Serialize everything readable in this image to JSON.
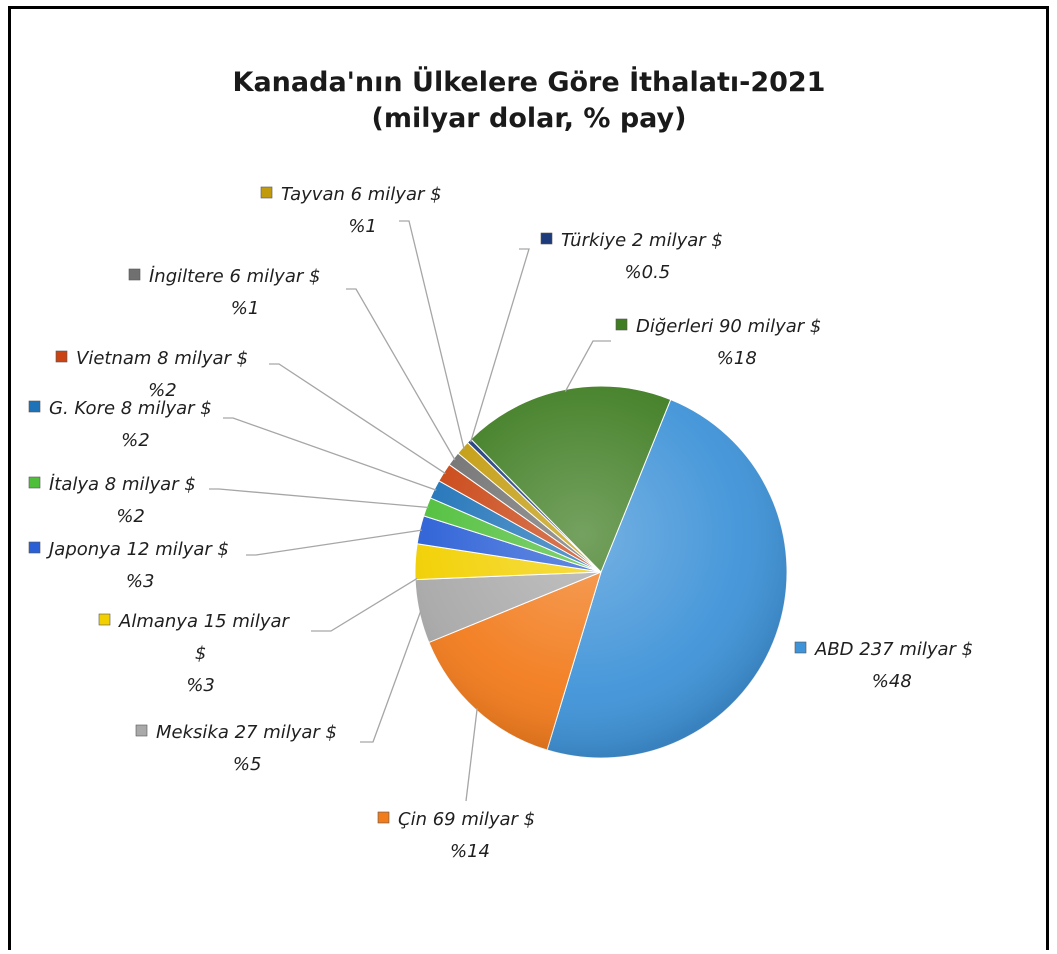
{
  "chart_data": {
    "type": "pie",
    "title": "Kanada'nın Ülkelere Göre İthalatı-2021",
    "subtitle": "(milyar dolar, % pay)",
    "slices": [
      {
        "name": "ABD",
        "value": 237,
        "unit": "milyar $",
        "percent_label": "%48",
        "color": "#3f93d8"
      },
      {
        "name": "Çin",
        "value": 69,
        "unit": "milyar $",
        "percent_label": "%14",
        "color": "#f27b1c"
      },
      {
        "name": "Meksika",
        "value": 27,
        "unit": "milyar $",
        "percent_label": "%5",
        "color": "#a9a9a9"
      },
      {
        "name": "Almanya",
        "value": 15,
        "unit": "milyar $",
        "percent_label": "%3",
        "color": "#f2d000"
      },
      {
        "name": "Japonya",
        "value": 12,
        "unit": "milyar $",
        "percent_label": "%3",
        "color": "#2a5fd6"
      },
      {
        "name": "İtalya",
        "value": 8,
        "unit": "milyar $",
        "percent_label": "%2",
        "color": "#4fbf3a"
      },
      {
        "name": "G. Kore",
        "value": 8,
        "unit": "milyar $",
        "percent_label": "%2",
        "color": "#1e72b8"
      },
      {
        "name": "Vietnam",
        "value": 8,
        "unit": "milyar $",
        "percent_label": "%2",
        "color": "#c94412"
      },
      {
        "name": "İngiltere",
        "value": 6,
        "unit": "milyar $",
        "percent_label": "%1",
        "color": "#707070"
      },
      {
        "name": "Tayvan",
        "value": 6,
        "unit": "milyar $",
        "percent_label": "%1",
        "color": "#c29b0c"
      },
      {
        "name": "Türkiye",
        "value": 2,
        "unit": "milyar $",
        "percent_label": "%0.5",
        "color": "#1d3b7a"
      },
      {
        "name": "Diğerleri",
        "value": 90,
        "unit": "milyar $",
        "percent_label": "%18",
        "color": "#3f7d22"
      }
    ],
    "labels": {
      "ABD": [
        "ABD 237 milyar $",
        "%48"
      ],
      "Çin": [
        "Çin 69 milyar $",
        "%14"
      ],
      "Meksika": [
        "Meksika 27 milyar $",
        "%5"
      ],
      "Almanya": [
        "Almanya 15 milyar",
        "$",
        "%3"
      ],
      "Japonya": [
        "Japonya 12 milyar $",
        "%3"
      ],
      "İtalya": [
        "İtalya 8 milyar $",
        "%2"
      ],
      "G. Kore": [
        "G. Kore 8 milyar $",
        "%2"
      ],
      "Vietnam": [
        "Vietnam 8 milyar $",
        "%2"
      ],
      "İngiltere": [
        "İngiltere 6 milyar $",
        "%1"
      ],
      "Tayvan": [
        "Tayvan 6 milyar $",
        "%1"
      ],
      "Türkiye": [
        "Türkiye 2 milyar $",
        "%0.5"
      ],
      "Diğerleri": [
        "Diğerleri 90 milyar $",
        "%18"
      ]
    }
  }
}
